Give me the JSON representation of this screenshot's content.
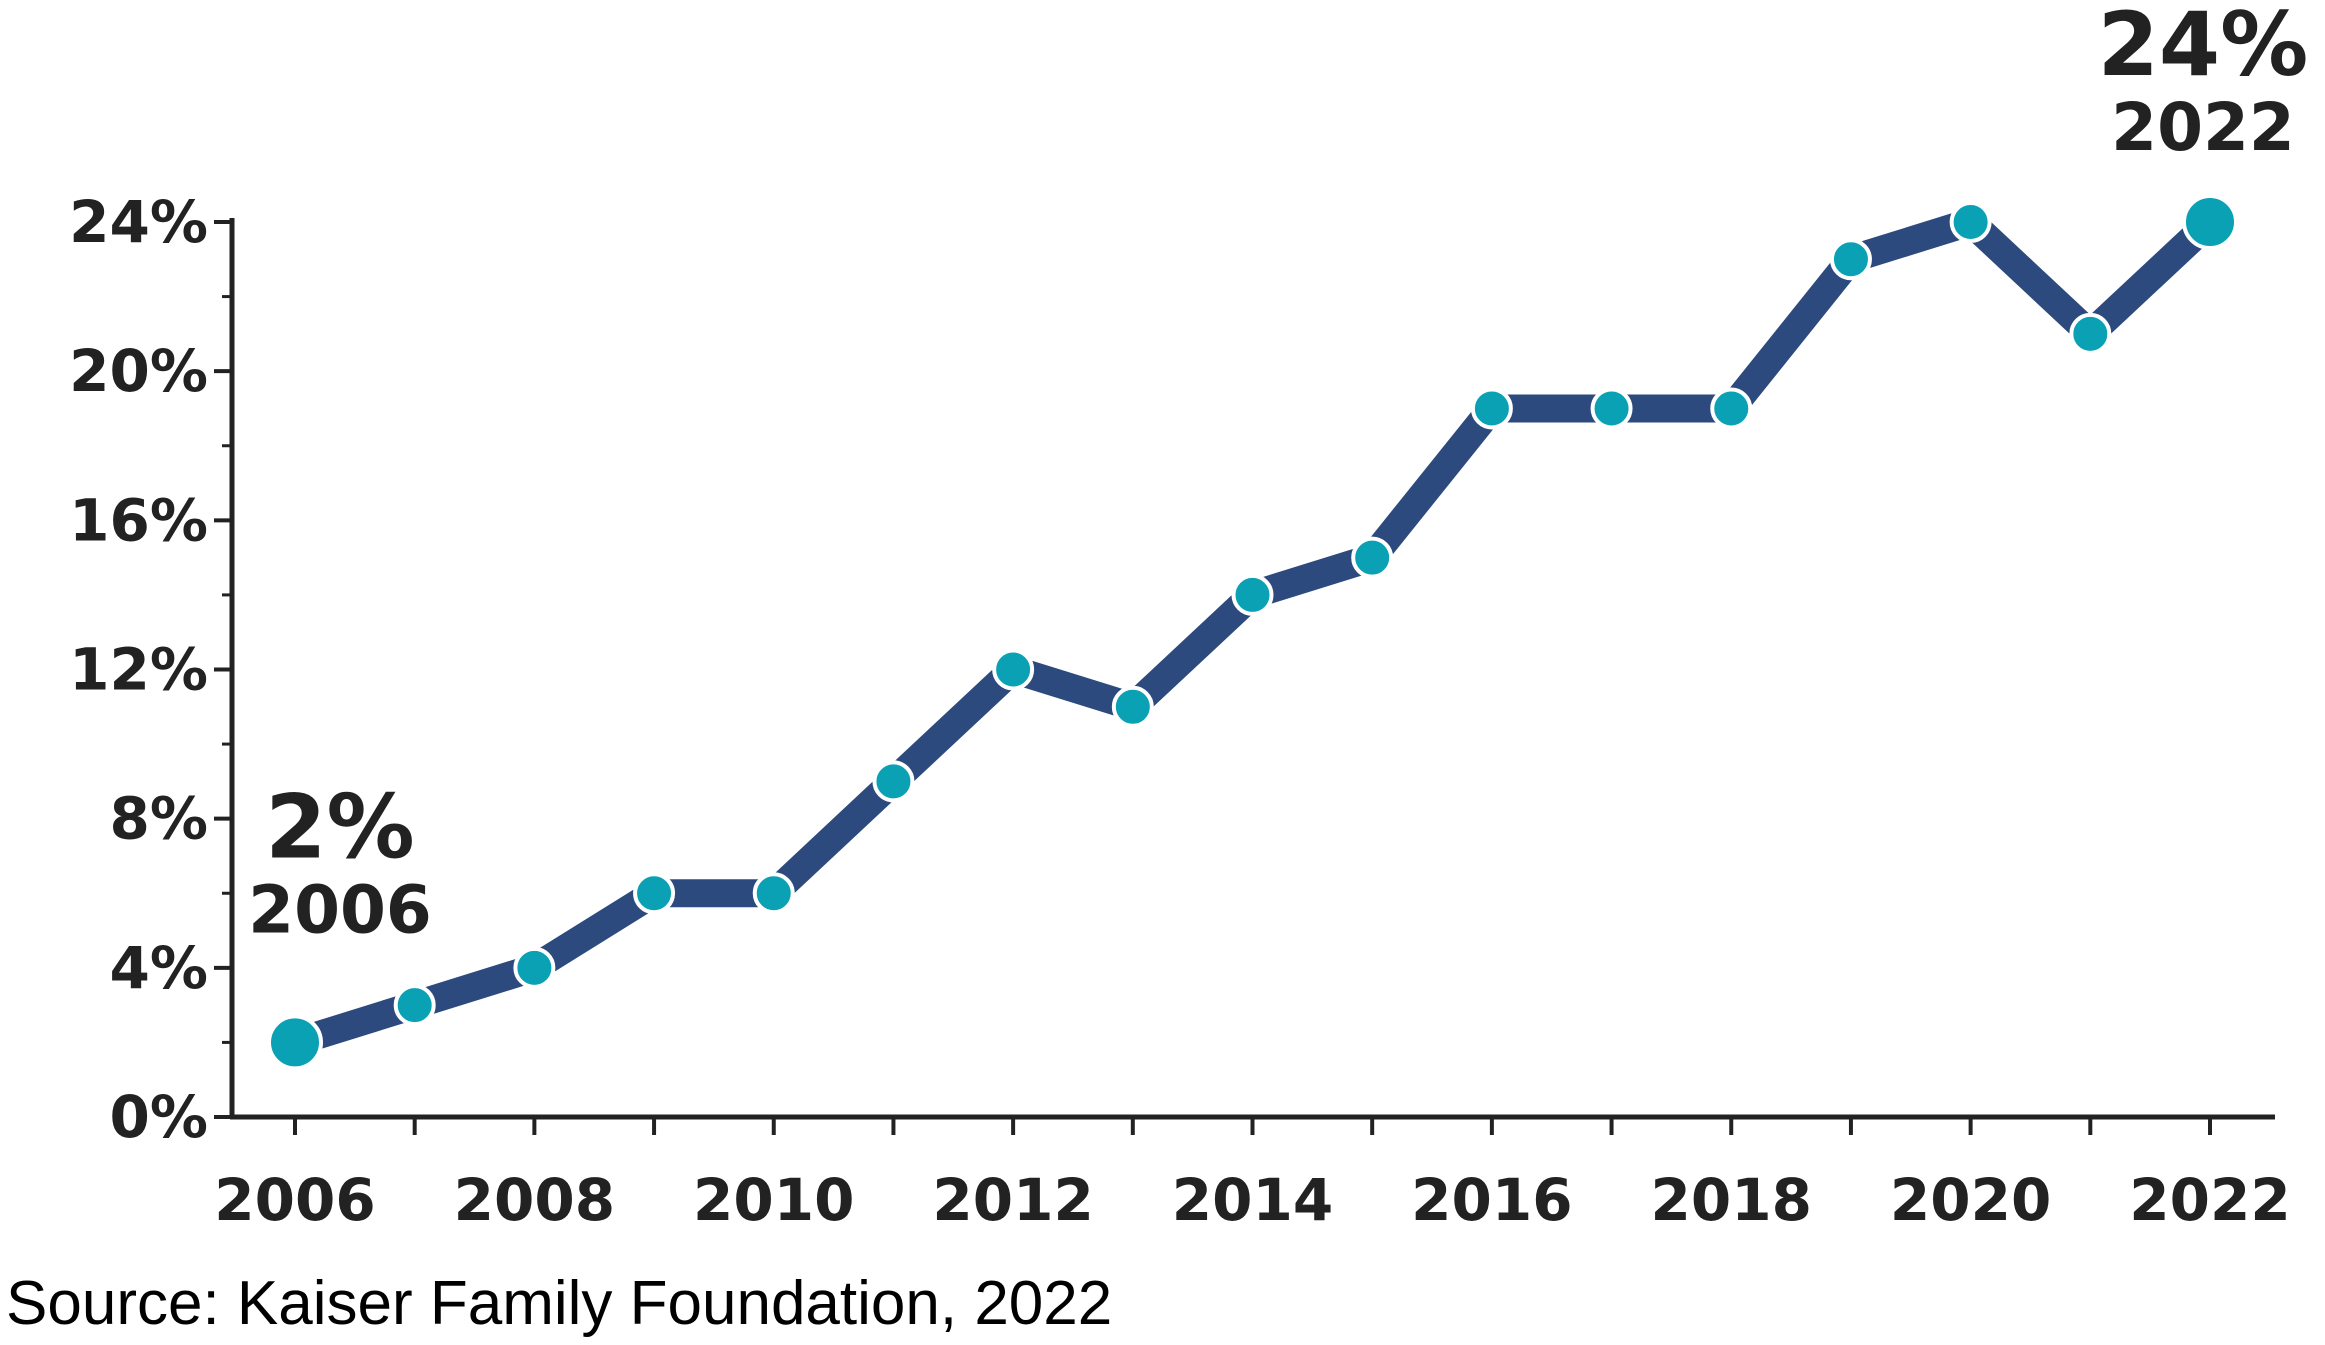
{
  "chart_data": {
    "type": "line",
    "x": [
      2006,
      2007,
      2008,
      2009,
      2010,
      2011,
      2012,
      2013,
      2014,
      2015,
      2016,
      2017,
      2018,
      2019,
      2020,
      2021,
      2022
    ],
    "series": [
      {
        "values": [
          2,
          3,
          4,
          6,
          6,
          9,
          12,
          11,
          14,
          15,
          19,
          19,
          19,
          23,
          24,
          21,
          24
        ]
      }
    ],
    "xticks": [
      2006,
      2008,
      2010,
      2012,
      2014,
      2016,
      2018,
      2020,
      2022
    ],
    "xtick_labels": [
      "2006",
      "2008",
      "2010",
      "2012",
      "2014",
      "2016",
      "2018",
      "2020",
      "2022"
    ],
    "yticks": [
      0,
      4,
      8,
      12,
      16,
      20,
      24
    ],
    "ytick_labels": [
      "0%",
      "4%",
      "8%",
      "12%",
      "16%",
      "20%",
      "24%"
    ],
    "xlim": [
      2006,
      2022
    ],
    "ylim": [
      0,
      24
    ],
    "grid": false,
    "legend": "none",
    "colors": {
      "line": "#2c4a7e",
      "marker": "#0aa1b5",
      "marker_edge": "#ffffff",
      "axis": "#222222"
    },
    "annotations": [
      {
        "x": 2006,
        "value_label": "2%",
        "year_label": "2006"
      },
      {
        "x": 2022,
        "value_label": "24%",
        "year_label": "2022"
      }
    ]
  },
  "source": "Source: Kaiser Family Foundation, 2022"
}
